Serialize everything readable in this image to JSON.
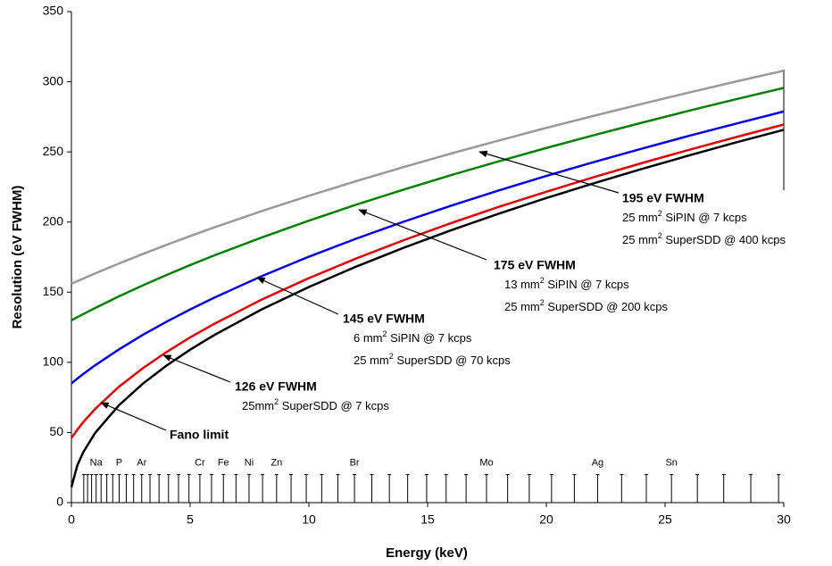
{
  "chart_data": {
    "type": "line",
    "xlabel": "Energy (keV)",
    "ylabel": "Resolution (eV FWHM)",
    "x": [
      0,
      0.25,
      0.5,
      1,
      2,
      3,
      4,
      5,
      6,
      8,
      10,
      12,
      14,
      16,
      18,
      20,
      22,
      24,
      26,
      28,
      30
    ],
    "series": [
      {
        "name": "Fano limit",
        "color": "#000000",
        "details": [],
        "values": [
          11,
          26.6,
          36,
          49.7,
          69.4,
          84.7,
          97.6,
          109,
          119.3,
          137.6,
          153.7,
          168.3,
          181.7,
          194.2,
          206,
          217.1,
          227.6,
          237.7,
          247.4,
          256.8,
          265.7
        ]
      },
      {
        "name": "126 eV FWHM",
        "color": "#e00000",
        "details": [
          [
            "25mm",
            "2",
            " SuperSDD @ 7 kcps"
          ]
        ],
        "values": [
          46,
          52,
          57.4,
          66.8,
          82.6,
          95.7,
          107.3,
          117.8,
          127.3,
          144.6,
          160,
          174.1,
          187.1,
          199.3,
          210.8,
          221.6,
          232,
          241.9,
          251.4,
          260.6,
          269.5
        ]
      },
      {
        "name": "145 eV FWHM",
        "color": "#0000e0",
        "details": [
          [
            "6 mm",
            "2",
            " SiPIN @ 7 kcps"
          ],
          [
            "25 mm",
            "2",
            " SuperSDD @ 70 kcps"
          ]
        ],
        "values": [
          85,
          88.4,
          91.7,
          97.9,
          109.2,
          119.5,
          128.9,
          137.7,
          146,
          161.3,
          175.3,
          188.2,
          200.3,
          211.7,
          222.5,
          232.9,
          242.7,
          252.2,
          261.4,
          270.2,
          278.8
        ]
      },
      {
        "name": "175 eV FWHM",
        "color": "#008000",
        "details": [
          [
            "13 mm",
            "2",
            " SiPIN @ 7 kcps"
          ],
          [
            "25 mm",
            "2",
            " SuperSDD @ 200 kcps"
          ]
        ],
        "values": [
          130,
          132.2,
          134.4,
          138.7,
          147,
          154.8,
          162.2,
          169.3,
          176.1,
          188.9,
          201,
          212.4,
          223.2,
          233.5,
          243.3,
          252.8,
          261.9,
          270.7,
          279.3,
          287.6,
          295.6
        ]
      },
      {
        "name": "195 eV FWHM",
        "color": "#999999",
        "details": [
          [
            "25 mm",
            "2",
            " SiPIN @ 7 kcps"
          ],
          [
            "25 mm",
            "2",
            " SuperSDD @ 400 kcps"
          ]
        ],
        "values": [
          156,
          157.9,
          159.7,
          163.4,
          170.4,
          177.2,
          183.7,
          190,
          196.1,
          207.7,
          218.7,
          229.2,
          239.2,
          248.9,
          258.1,
          267.1,
          275.7,
          284.1,
          292.3,
          300.2,
          307.9
        ]
      }
    ],
    "element_lines": {
      "x": [
        0.52,
        0.68,
        0.85,
        1.04,
        1.25,
        1.49,
        1.74,
        2.01,
        2.31,
        2.62,
        2.96,
        3.31,
        3.69,
        4.09,
        4.51,
        4.95,
        5.41,
        5.9,
        6.4,
        6.93,
        7.48,
        8.05,
        8.64,
        9.25,
        9.89,
        10.54,
        11.22,
        11.92,
        12.65,
        13.39,
        14.16,
        14.96,
        15.78,
        16.62,
        17.48,
        18.37,
        19.28,
        20.22,
        21.18,
        22.16,
        23.17,
        24.21,
        25.27,
        26.36,
        27.47,
        28.61,
        29.78
      ],
      "values": [
        20,
        20,
        20,
        20,
        20,
        20,
        20,
        20,
        20,
        20,
        20,
        20,
        20,
        20,
        20,
        20,
        20,
        20,
        20,
        20,
        20,
        20,
        20,
        20,
        20,
        20,
        20,
        20,
        20,
        20,
        20,
        20,
        20,
        20,
        20,
        20,
        20,
        20,
        20,
        20,
        20,
        20,
        20,
        20,
        20,
        20,
        20
      ],
      "labels": [
        null,
        null,
        null,
        "Na",
        null,
        null,
        null,
        "P",
        null,
        null,
        "Ar",
        null,
        null,
        null,
        null,
        null,
        "Cr",
        null,
        "Fe",
        null,
        "Ni",
        null,
        "Zn",
        null,
        null,
        null,
        null,
        "Br",
        null,
        null,
        null,
        null,
        null,
        null,
        "Mo",
        null,
        null,
        null,
        null,
        "Ag",
        null,
        null,
        "Sn",
        null,
        null,
        null,
        null
      ]
    },
    "xlim": [
      0,
      30
    ],
    "xticks": [
      0,
      5,
      10,
      15,
      20,
      25,
      30
    ],
    "ylim": [
      0,
      350
    ],
    "yticks": [
      0,
      50,
      100,
      150,
      200,
      250,
      300,
      350
    ],
    "grid": false
  }
}
